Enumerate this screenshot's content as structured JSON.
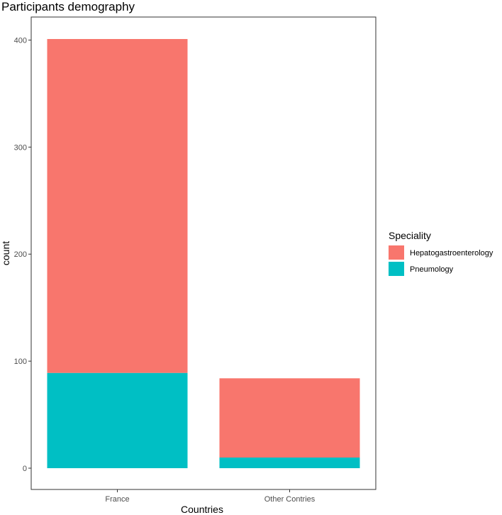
{
  "chart_data": {
    "type": "bar",
    "stacked": true,
    "title": "Participants demography",
    "xlabel": "Countries",
    "ylabel": "count",
    "categories": [
      "France",
      "Other Contries"
    ],
    "series": [
      {
        "name": "Hepatogastroenterology",
        "color": "#F8766D",
        "values": [
          312,
          74
        ]
      },
      {
        "name": "Pneumology",
        "color": "#00BFC4",
        "values": [
          89,
          10
        ]
      }
    ],
    "ylim": [
      0,
      401
    ],
    "yticks": [
      "0",
      "100",
      "200",
      "300",
      "400"
    ],
    "grid": false,
    "legend": {
      "title": "Speciality",
      "position": "right"
    }
  }
}
